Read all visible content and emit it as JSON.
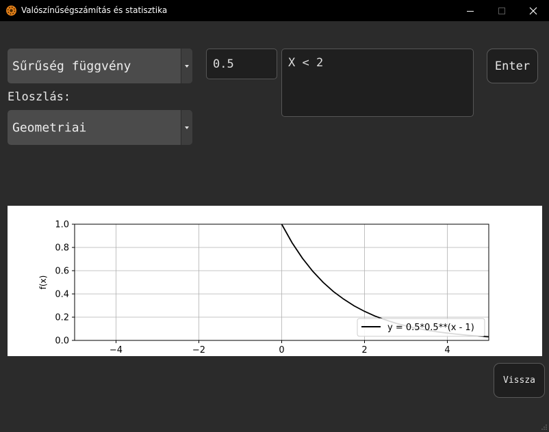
{
  "window": {
    "title": "Valószínűségszámítás és statisztika",
    "icon": "gear-icon"
  },
  "controls": {
    "function_select": "Sűrűség függvény",
    "distribution_label": "Eloszlás:",
    "distribution_select": "Geometriai",
    "param_input": "0.5",
    "condition_input": "X < 2",
    "enter_button": "Enter",
    "back_button": "Vissza"
  },
  "chart_data": {
    "type": "line",
    "ylabel": "f(x)",
    "xlim": [
      -5,
      5
    ],
    "ylim": [
      0,
      1
    ],
    "xticks": [
      -4,
      -2,
      0,
      2,
      4
    ],
    "xtick_labels": [
      "−4",
      "−2",
      "0",
      "2",
      "4"
    ],
    "yticks": [
      0,
      0.2,
      0.4,
      0.6,
      0.8,
      1.0
    ],
    "ytick_labels": [
      "0.0",
      "0.2",
      "0.4",
      "0.6",
      "0.8",
      "1.0"
    ],
    "grid": true,
    "legend_position": "lower-right",
    "series": [
      {
        "name": "y = 0.5*0.5**(x - 1)",
        "color": "#000000",
        "x": [
          0,
          0.25,
          0.5,
          0.75,
          1,
          1.25,
          1.5,
          1.75,
          2,
          2.25,
          2.5,
          2.75,
          3,
          3.25,
          3.5,
          3.75,
          4,
          4.25,
          4.5,
          4.75,
          5
        ],
        "y": [
          1.0,
          0.841,
          0.707,
          0.595,
          0.5,
          0.42,
          0.354,
          0.297,
          0.25,
          0.21,
          0.177,
          0.149,
          0.125,
          0.105,
          0.088,
          0.074,
          0.063,
          0.053,
          0.044,
          0.037,
          0.031
        ]
      }
    ]
  }
}
